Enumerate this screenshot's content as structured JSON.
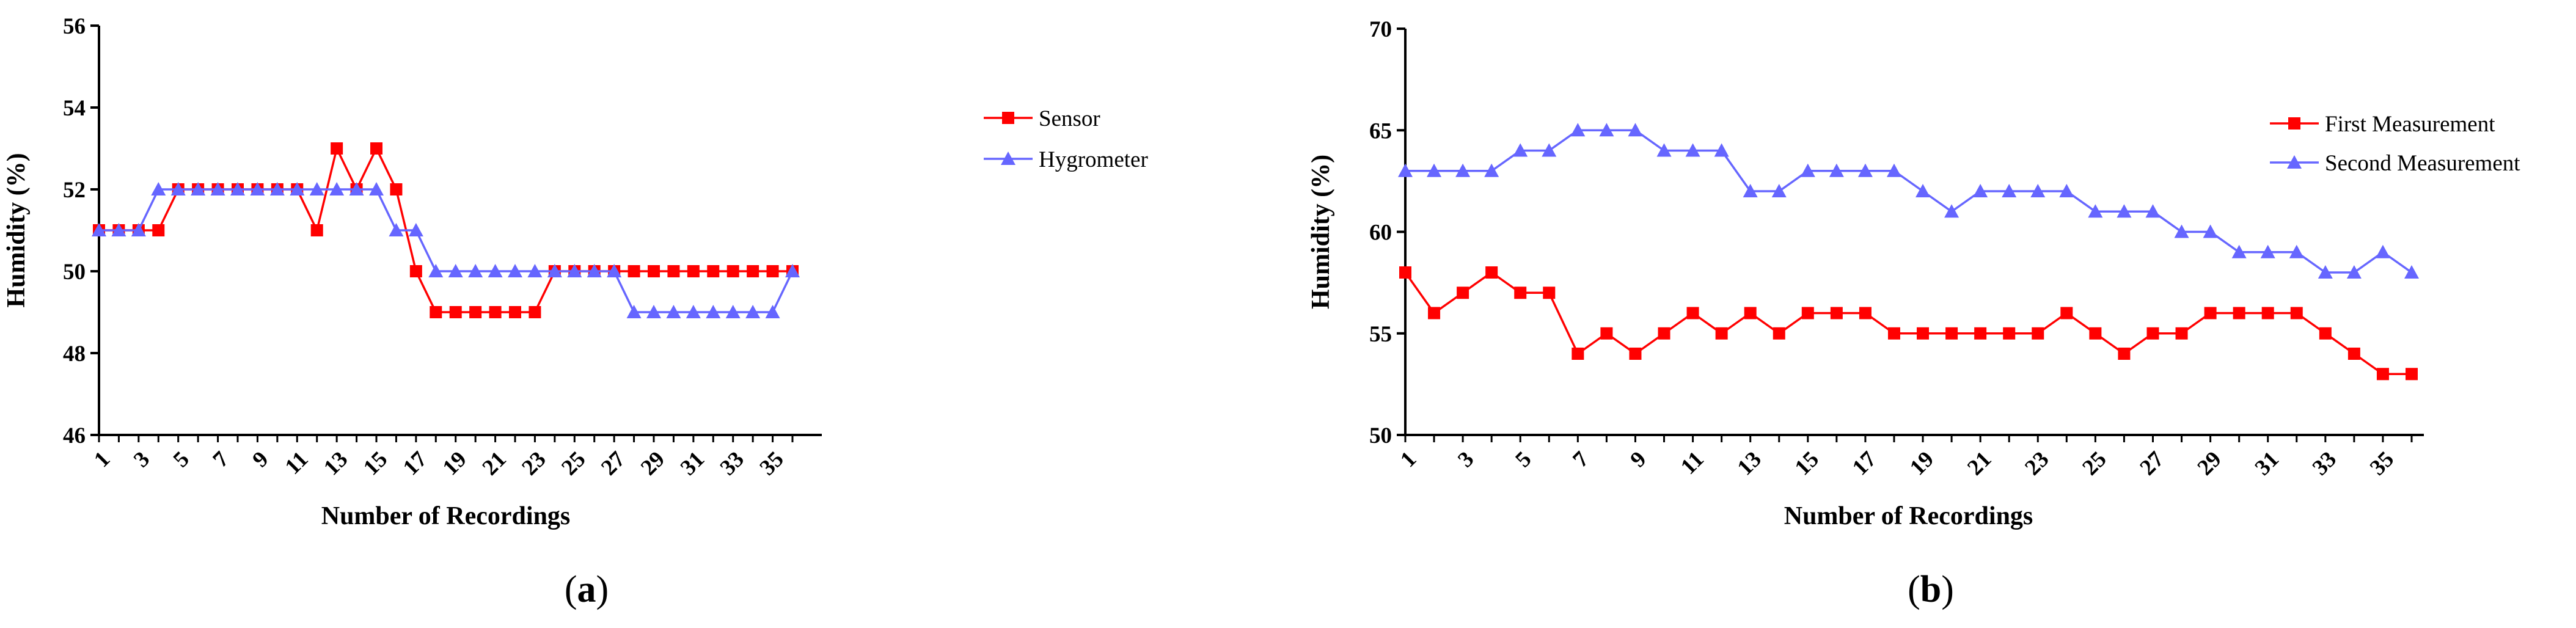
{
  "chart_data": [
    {
      "type": "line",
      "panel_label": "a",
      "xlabel": "Number of Recordings",
      "ylabel": "Humidity (%)",
      "ylim": [
        46,
        56
      ],
      "yticks": [
        46,
        48,
        50,
        52,
        54,
        56
      ],
      "xlim": [
        1,
        36
      ],
      "xticks": [
        1,
        3,
        5,
        7,
        9,
        11,
        13,
        15,
        17,
        19,
        21,
        23,
        25,
        27,
        29,
        31,
        33,
        35
      ],
      "legend_position": "top-right",
      "series": [
        {
          "name": "Sensor",
          "color": "#ff0000",
          "marker": "square",
          "x": [
            1,
            2,
            3,
            4,
            5,
            6,
            7,
            8,
            9,
            10,
            11,
            12,
            13,
            14,
            15,
            16,
            17,
            18,
            19,
            20,
            21,
            22,
            23,
            24,
            25,
            26,
            27,
            28,
            29,
            30,
            31,
            32,
            33,
            34,
            35,
            36
          ],
          "values": [
            51,
            51,
            51,
            51,
            52,
            52,
            52,
            52,
            52,
            52,
            52,
            51,
            53,
            52,
            53,
            52,
            50,
            49,
            49,
            49,
            49,
            49,
            49,
            50,
            50,
            50,
            50,
            50,
            50,
            50,
            50,
            50,
            50,
            50,
            50,
            50
          ]
        },
        {
          "name": "Hygrometer",
          "color": "#6666ff",
          "marker": "triangle",
          "x": [
            1,
            2,
            3,
            4,
            5,
            6,
            7,
            8,
            9,
            10,
            11,
            12,
            13,
            14,
            15,
            16,
            17,
            18,
            19,
            20,
            21,
            22,
            23,
            24,
            25,
            26,
            27,
            28,
            29,
            30,
            31,
            32,
            33,
            34,
            35,
            36
          ],
          "values": [
            51,
            51,
            51,
            52,
            52,
            52,
            52,
            52,
            52,
            52,
            52,
            52,
            52,
            52,
            52,
            51,
            51,
            50,
            50,
            50,
            50,
            50,
            50,
            50,
            50,
            50,
            50,
            49,
            49,
            49,
            49,
            49,
            49,
            49,
            49,
            50
          ]
        }
      ]
    },
    {
      "type": "line",
      "panel_label": "b",
      "xlabel": "Number of Recordings",
      "ylabel": "Humidity (%)",
      "ylim": [
        50,
        70
      ],
      "yticks": [
        50,
        55,
        60,
        65,
        70
      ],
      "xlim": [
        1,
        36
      ],
      "xticks": [
        1,
        3,
        5,
        7,
        9,
        11,
        13,
        15,
        17,
        19,
        21,
        23,
        25,
        27,
        29,
        31,
        33,
        35
      ],
      "legend_position": "top-right",
      "series": [
        {
          "name": "First Measurement",
          "color": "#ff0000",
          "marker": "square",
          "x": [
            1,
            2,
            3,
            4,
            5,
            6,
            7,
            8,
            9,
            10,
            11,
            12,
            13,
            14,
            15,
            16,
            17,
            18,
            19,
            20,
            21,
            22,
            23,
            24,
            25,
            26,
            27,
            28,
            29,
            30,
            31,
            32,
            33,
            34,
            35,
            36
          ],
          "values": [
            58,
            56,
            57,
            58,
            57,
            57,
            54,
            55,
            54,
            55,
            56,
            55,
            56,
            55,
            56,
            56,
            56,
            55,
            55,
            55,
            55,
            55,
            55,
            56,
            55,
            54,
            55,
            55,
            56,
            56,
            56,
            56,
            55,
            54,
            53,
            53
          ]
        },
        {
          "name": "Second Measurement",
          "color": "#6666ff",
          "marker": "triangle",
          "x": [
            1,
            2,
            3,
            4,
            5,
            6,
            7,
            8,
            9,
            10,
            11,
            12,
            13,
            14,
            15,
            16,
            17,
            18,
            19,
            20,
            21,
            22,
            23,
            24,
            25,
            26,
            27,
            28,
            29,
            30,
            31,
            32,
            33,
            34,
            35,
            36
          ],
          "values": [
            63,
            63,
            63,
            63,
            64,
            64,
            65,
            65,
            65,
            64,
            64,
            64,
            62,
            62,
            63,
            63,
            63,
            63,
            62,
            61,
            62,
            62,
            62,
            62,
            61,
            61,
            61,
            60,
            60,
            59,
            59,
            59,
            58,
            58,
            59,
            58
          ]
        }
      ]
    }
  ]
}
